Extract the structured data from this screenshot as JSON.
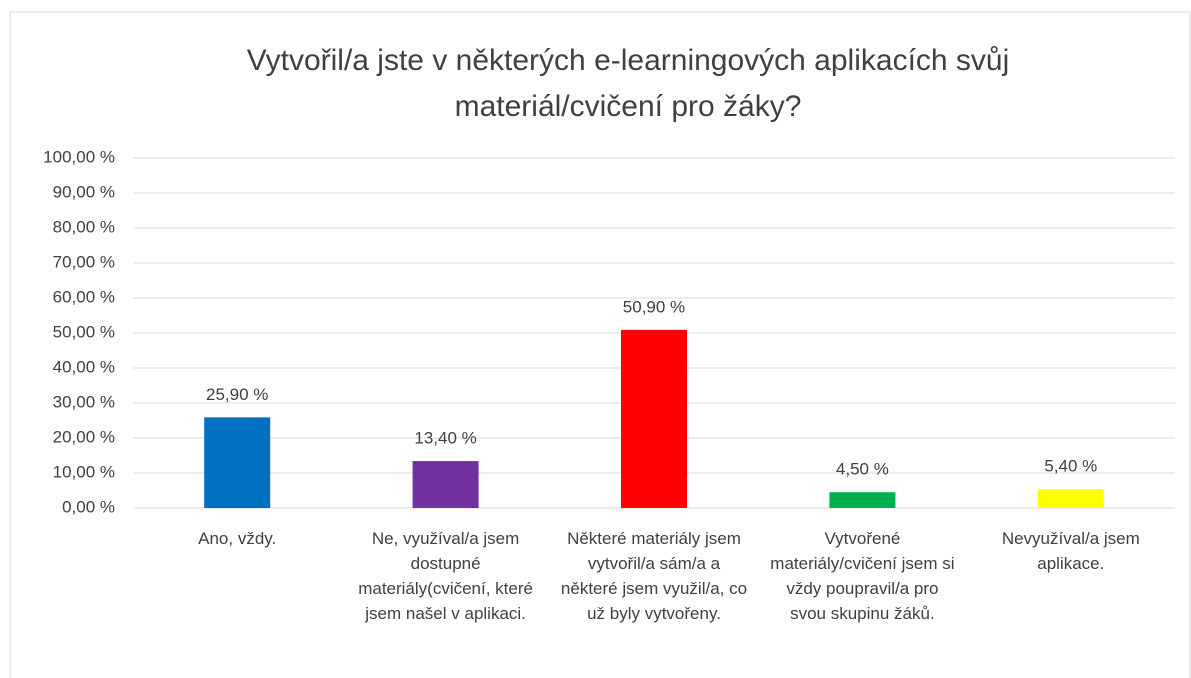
{
  "chart_data": {
    "type": "bar",
    "title": "Vytvořil/a jste v některých e-learningových aplikacích svůj materiál/cvičení pro žáky?",
    "categories": [
      "Ano, vždy.",
      "Ne, využíval/a jsem dostupné materiály(cvičení, které jsem našel v aplikaci.",
      "Některé materiály jsem vytvořil/a sám/a a některé jsem využil/a, co už byly vytvořeny.",
      "Vytvořené materiály/cvičení jsem si vždy poupravil/a pro svou skupinu žáků.",
      "Nevyužíval/a jsem aplikace."
    ],
    "values": [
      25.9,
      13.4,
      50.9,
      4.5,
      5.4
    ],
    "value_labels": [
      "25,90 %",
      "13,40 %",
      "50,90 %",
      "4,50 %",
      "5,40 %"
    ],
    "colors": [
      "#0070c0",
      "#7030a0",
      "#ff0000",
      "#00b050",
      "#ffff00"
    ],
    "ylim": [
      0,
      100
    ],
    "yticks": [
      {
        "value": 0,
        "label": "0,00 %"
      },
      {
        "value": 10,
        "label": "10,00 %"
      },
      {
        "value": 20,
        "label": "20,00 %"
      },
      {
        "value": 30,
        "label": "30,00 %"
      },
      {
        "value": 40,
        "label": "40,00 %"
      },
      {
        "value": 50,
        "label": "50,00 %"
      },
      {
        "value": 60,
        "label": "60,00 %"
      },
      {
        "value": 70,
        "label": "70,00 %"
      },
      {
        "value": 80,
        "label": "80,00 %"
      },
      {
        "value": 90,
        "label": "90,00 %"
      },
      {
        "value": 100,
        "label": "100,00 %"
      }
    ],
    "grid": true
  }
}
